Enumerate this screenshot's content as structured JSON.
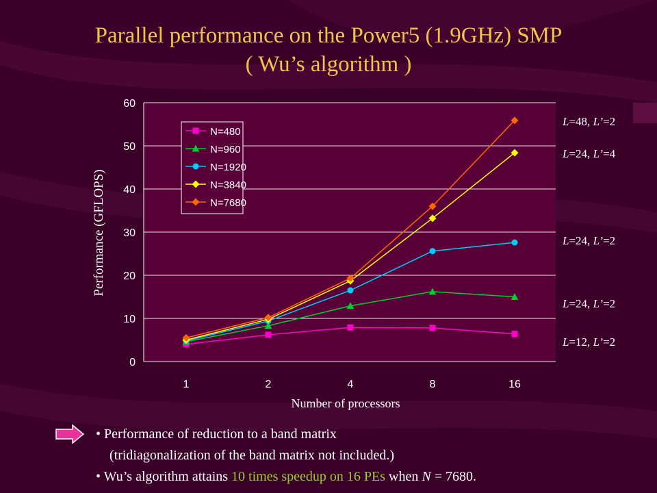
{
  "slide": {
    "title_line1": "Parallel performance on the Power5 (1.9GHz) SMP",
    "title_line2": "( Wu’s algorithm )"
  },
  "chart_data": {
    "type": "line",
    "x": [
      "1",
      "2",
      "4",
      "8",
      "16"
    ],
    "ylabel": "Performance (GFLOPS)",
    "xlabel": "Number of processors",
    "ylim": [
      0,
      60
    ],
    "yticks": [
      0,
      10,
      20,
      30,
      40,
      50,
      60
    ],
    "grid": "horizontal",
    "legend_position": "top-left",
    "series": [
      {
        "name": "N=480",
        "color": "#ff00cc",
        "marker": "square",
        "values": [
          4.0,
          6.2,
          7.9,
          7.8,
          6.4
        ]
      },
      {
        "name": "N=960",
        "color": "#00cc33",
        "marker": "triangle",
        "values": [
          4.6,
          8.3,
          12.9,
          16.2,
          15.0
        ]
      },
      {
        "name": "N=1920",
        "color": "#00ccff",
        "marker": "circle",
        "values": [
          4.8,
          9.4,
          16.5,
          25.6,
          27.6
        ]
      },
      {
        "name": "N=3840",
        "color": "#ffff00",
        "marker": "diamond",
        "values": [
          5.0,
          9.8,
          18.7,
          33.2,
          48.4
        ]
      },
      {
        "name": "N=7680",
        "color": "#ff6600",
        "marker": "diamond",
        "values": [
          5.5,
          10.2,
          19.3,
          36.0,
          55.9
        ]
      }
    ],
    "annotations": [
      {
        "L": "48",
        "Lp": "2"
      },
      {
        "L": "24",
        "Lp": "4"
      },
      {
        "L": "24",
        "Lp": "2"
      },
      {
        "L": "24",
        "Lp": "2"
      },
      {
        "L": "12",
        "Lp": "2"
      }
    ]
  },
  "notes": {
    "bullet": "•",
    "b1": "Performance of reduction to a band matrix",
    "b1_cont": "(tridiagonalization of the band matrix not included.)",
    "b2_pre": "Wu’s algorithm attains ",
    "b2_hl": "10 times speedup on 16 PEs",
    "b2_mid": " when ",
    "b2_var": "N",
    "b2_post": " = 7680."
  },
  "theme": {
    "background": "#3a0028",
    "title_color": "#f2c34a",
    "plot_bg": "#5a0038",
    "grid_color": "#ffffff",
    "highlight": "#99cc33",
    "arrow_color": "#e8339a"
  }
}
